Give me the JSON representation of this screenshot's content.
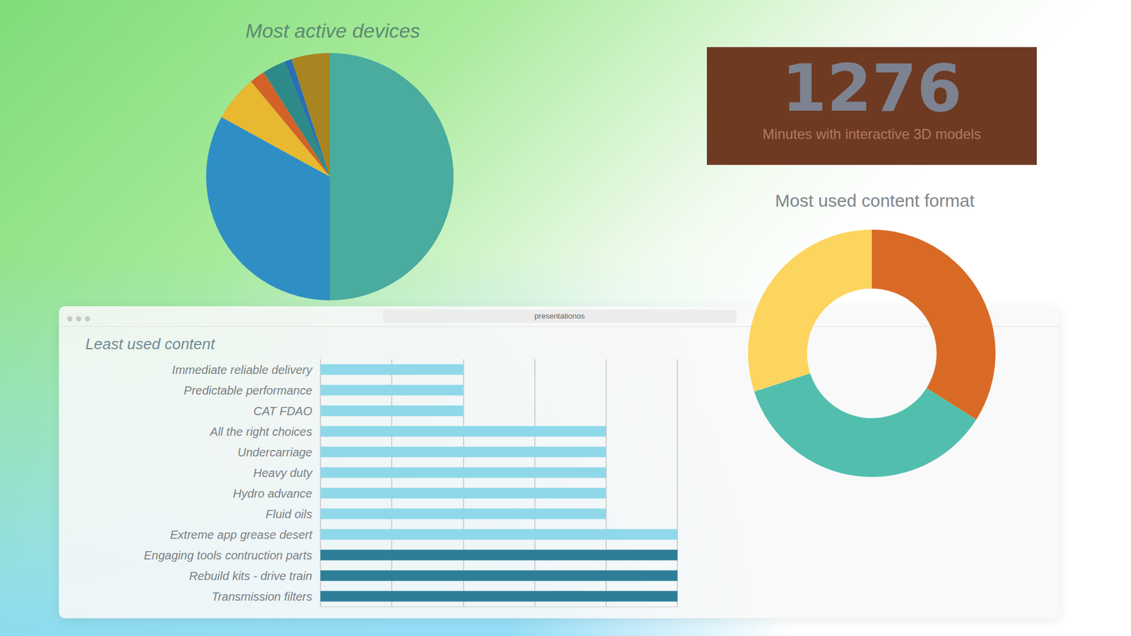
{
  "kpi": {
    "value": 1276,
    "label": "Minutes with interactive 3D models"
  },
  "browser": {
    "url": "presentationos"
  },
  "chart_data": [
    {
      "type": "pie",
      "title": "Most active devices",
      "values": [
        50,
        33,
        6,
        2,
        3,
        1,
        5
      ],
      "colors": [
        "#4aab9f",
        "#2f8fc4",
        "#e8b830",
        "#d2622a",
        "#2e8a88",
        "#2a70b0",
        "#a88520"
      ]
    },
    {
      "type": "bar",
      "title": "Least used content",
      "orientation": "horizontal",
      "categories": [
        "Immediate reliable delivery",
        "Predictable performance",
        "CAT FDAO",
        "All the right choices",
        "Undercarriage",
        "Heavy duty",
        "Hydro advance",
        "Fluid oils",
        "Extreme app grease desert",
        "Engaging tools contruction parts",
        "Rebuild kits - drive train",
        "Transmission filters"
      ],
      "values": [
        2,
        2,
        2,
        4,
        4,
        4,
        4,
        4,
        5,
        5,
        5,
        5
      ],
      "colors": [
        "#8fd8ea",
        "#8fd8ea",
        "#8fd8ea",
        "#8fd8ea",
        "#8fd8ea",
        "#8fd8ea",
        "#8fd8ea",
        "#8fd8ea",
        "#8fd8ea",
        "#2e7e98",
        "#2e7e98",
        "#2e7e98"
      ],
      "xlim": [
        0,
        5
      ],
      "xticks": [
        0,
        1,
        2,
        3,
        4,
        5
      ],
      "grid": true,
      "tick_labels": false
    },
    {
      "type": "donut",
      "title": "Most used content format",
      "values": [
        34,
        36,
        30
      ],
      "colors": [
        "#d96a25",
        "#52bfae",
        "#fcd55f"
      ]
    }
  ]
}
